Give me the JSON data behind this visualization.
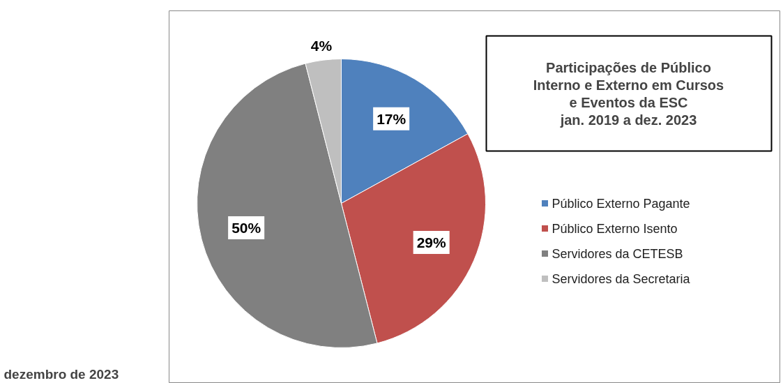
{
  "chart_data": {
    "type": "pie",
    "title": "Participações de Público\nInterno e Externo em Cursos\ne Eventos da ESC\njan. 2019 a dez. 2023",
    "categories": [
      "Público Externo Pagante",
      "Público Externo Isento",
      "Servidores da CETESB",
      "Servidores da Secretaria"
    ],
    "values": [
      17,
      29,
      50,
      4
    ],
    "colors": [
      "#4f81bd",
      "#c0504d",
      "#808080",
      "#bfbfbf"
    ],
    "value_labels": [
      "17%",
      "29%",
      "50%",
      "4%"
    ],
    "legend": "right",
    "annotations": [
      "dezembro de 2023"
    ]
  }
}
